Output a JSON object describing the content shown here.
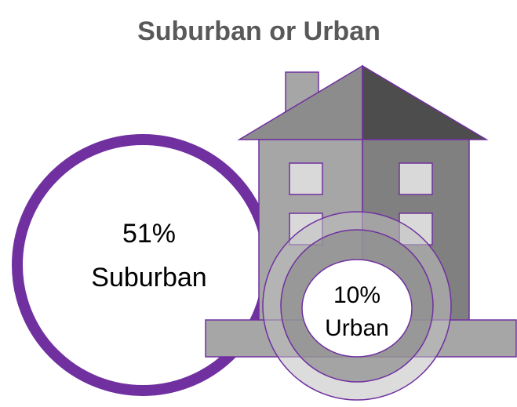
{
  "title": "Suburban or Urban",
  "items": [
    {
      "percent": "51%",
      "label": "Suburban"
    },
    {
      "percent": "10%",
      "label": "Urban"
    }
  ]
}
